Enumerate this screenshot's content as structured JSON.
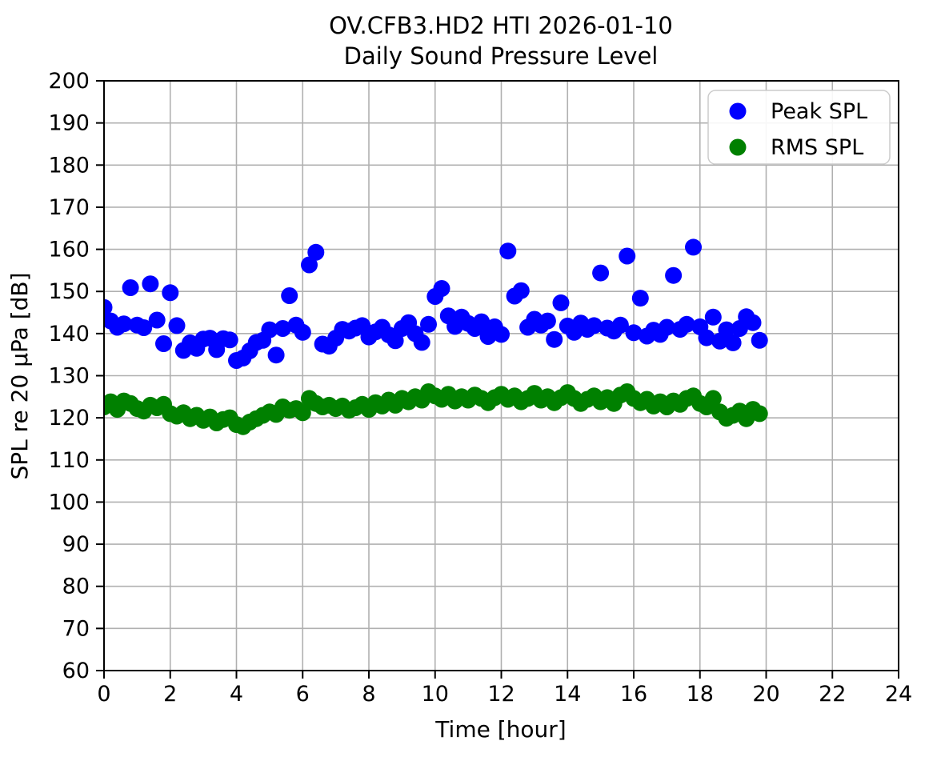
{
  "figure": {
    "background": "#ffffff"
  },
  "chart_data": {
    "type": "scatter",
    "title_line1": "OV.CFB3.HD2 HTI 2026-01-10",
    "title_line2": "Daily Sound Pressure Level",
    "title": "OV.CFB3.HD2 HTI 2026-01-10\nDaily Sound Pressure Level",
    "xlabel": "Time [hour]",
    "ylabel": "SPL re 20 µPa [dB]",
    "xlim": [
      0,
      24
    ],
    "ylim": [
      60,
      200
    ],
    "xticks": [
      0,
      2,
      4,
      6,
      8,
      10,
      12,
      14,
      16,
      18,
      20,
      22,
      24
    ],
    "yticks": [
      60,
      70,
      80,
      90,
      100,
      110,
      120,
      130,
      140,
      150,
      160,
      170,
      180,
      190,
      200
    ],
    "grid": true,
    "grid_color": "#b0b0b0",
    "spine_color": "#000000",
    "legend": {
      "position": "upper right",
      "entries": [
        {
          "label": "Peak SPL",
          "color": "#0000ff"
        },
        {
          "label": "RMS SPL",
          "color": "#008000"
        }
      ]
    },
    "x": [
      0.0,
      0.2,
      0.4,
      0.6,
      0.8,
      1.0,
      1.2,
      1.4,
      1.6,
      1.8,
      2.0,
      2.2,
      2.4,
      2.6,
      2.8,
      3.0,
      3.2,
      3.4,
      3.6,
      3.8,
      4.0,
      4.2,
      4.4,
      4.6,
      4.8,
      5.0,
      5.2,
      5.4,
      5.6,
      5.8,
      6.0,
      6.2,
      6.4,
      6.6,
      6.8,
      7.0,
      7.2,
      7.4,
      7.6,
      7.8,
      8.0,
      8.2,
      8.4,
      8.6,
      8.8,
      9.0,
      9.2,
      9.4,
      9.6,
      9.8,
      10.0,
      10.2,
      10.4,
      10.6,
      10.8,
      11.0,
      11.2,
      11.4,
      11.6,
      11.8,
      12.0,
      12.2,
      12.4,
      12.6,
      12.8,
      13.0,
      13.2,
      13.4,
      13.6,
      13.8,
      14.0,
      14.2,
      14.4,
      14.6,
      14.8,
      15.0,
      15.2,
      15.4,
      15.6,
      15.8,
      16.0,
      16.2,
      16.4,
      16.6,
      16.8,
      17.0,
      17.2,
      17.4,
      17.6,
      17.8,
      18.0,
      18.2,
      18.4,
      18.6,
      18.8,
      19.0,
      19.2,
      19.4,
      19.6,
      19.8
    ],
    "series": [
      {
        "name": "Peak SPL",
        "color": "#0000ff",
        "values": [
          146.2,
          143.0,
          141.5,
          142.3,
          150.9,
          142.0,
          141.4,
          151.8,
          143.2,
          137.6,
          149.7,
          141.9,
          136.0,
          137.8,
          136.5,
          138.7,
          138.9,
          136.2,
          138.8,
          138.5,
          133.6,
          134.2,
          135.9,
          137.9,
          138.4,
          140.9,
          134.9,
          141.2,
          149.0,
          142.0,
          140.3,
          156.3,
          159.3,
          137.5,
          137.0,
          138.9,
          141.0,
          140.6,
          141.3,
          141.9,
          139.2,
          140.4,
          141.5,
          139.7,
          138.3,
          141.2,
          142.6,
          140.0,
          137.9,
          142.2,
          148.8,
          150.7,
          144.2,
          141.7,
          143.9,
          142.4,
          141.2,
          142.8,
          139.3,
          141.6,
          139.8,
          159.6,
          148.9,
          150.2,
          141.5,
          143.4,
          142.0,
          143.0,
          138.6,
          147.3,
          141.8,
          140.3,
          142.5,
          141.0,
          141.9,
          154.4,
          141.3,
          140.6,
          142.0,
          158.4,
          140.2,
          148.4,
          139.4,
          140.8,
          139.8,
          141.5,
          153.8,
          141.0,
          142.2,
          160.5,
          141.6,
          139.0,
          143.9,
          138.2,
          140.9,
          137.8,
          141.2,
          144.0,
          142.6,
          138.4
        ]
      },
      {
        "name": "RMS SPL",
        "color": "#008000",
        "values": [
          122.6,
          123.8,
          122.0,
          124.0,
          123.4,
          122.2,
          121.6,
          123.0,
          122.4,
          123.2,
          121.0,
          120.4,
          121.2,
          119.8,
          120.6,
          119.4,
          120.2,
          118.8,
          119.6,
          120.0,
          118.4,
          117.9,
          119.0,
          119.8,
          120.6,
          121.4,
          120.8,
          122.6,
          121.8,
          122.2,
          121.2,
          124.6,
          123.4,
          122.6,
          123.0,
          122.2,
          122.8,
          121.8,
          122.4,
          123.2,
          122.0,
          123.6,
          122.8,
          124.2,
          123.0,
          124.6,
          123.8,
          125.0,
          124.2,
          126.2,
          125.2,
          124.4,
          125.6,
          124.0,
          125.0,
          124.2,
          125.4,
          124.6,
          123.6,
          124.8,
          125.6,
          124.4,
          125.2,
          123.8,
          124.6,
          125.8,
          124.2,
          125.0,
          123.6,
          124.8,
          126.0,
          124.6,
          123.4,
          124.4,
          125.2,
          123.8,
          124.8,
          123.4,
          125.4,
          126.2,
          124.6,
          123.6,
          124.4,
          122.8,
          123.8,
          122.6,
          124.0,
          123.2,
          124.6,
          125.2,
          123.4,
          122.6,
          124.6,
          121.4,
          119.9,
          120.6,
          121.6,
          119.8,
          122.0,
          121.0
        ]
      }
    ]
  }
}
